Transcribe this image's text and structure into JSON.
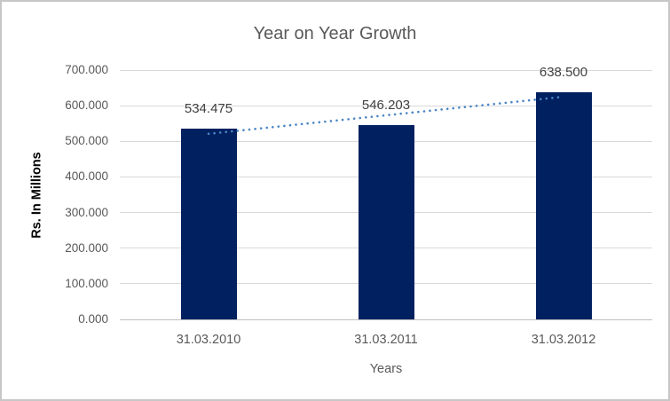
{
  "chart_data": {
    "type": "bar",
    "title": "Year on Year Growth",
    "xlabel": "Years",
    "ylabel": "Rs. In Millions",
    "categories": [
      "31.03.2010",
      "31.03.2011",
      "31.03.2012"
    ],
    "values": [
      534.475,
      546.203,
      638.5
    ],
    "data_labels": [
      "534.475",
      "546.203",
      "638.500"
    ],
    "ylim": [
      0,
      700
    ],
    "ytick_step": 100,
    "ytick_labels": [
      "0.000",
      "100.000",
      "200.000",
      "300.000",
      "400.000",
      "500.000",
      "600.000",
      "700.000"
    ],
    "grid": true,
    "legend": "none",
    "trendline": {
      "type": "linear",
      "style": "dotted"
    },
    "colors": {
      "bar": "#002060",
      "trendline": "#4a85c6",
      "gridline": "#d9d9d9",
      "axis_line": "#bfbfbf",
      "title_text": "#595959",
      "tick_text": "#595959",
      "data_label_text": "#404040",
      "axis_title_text": "#000000",
      "chart_border": "#c7c7c7",
      "background": "#ffffff"
    }
  }
}
